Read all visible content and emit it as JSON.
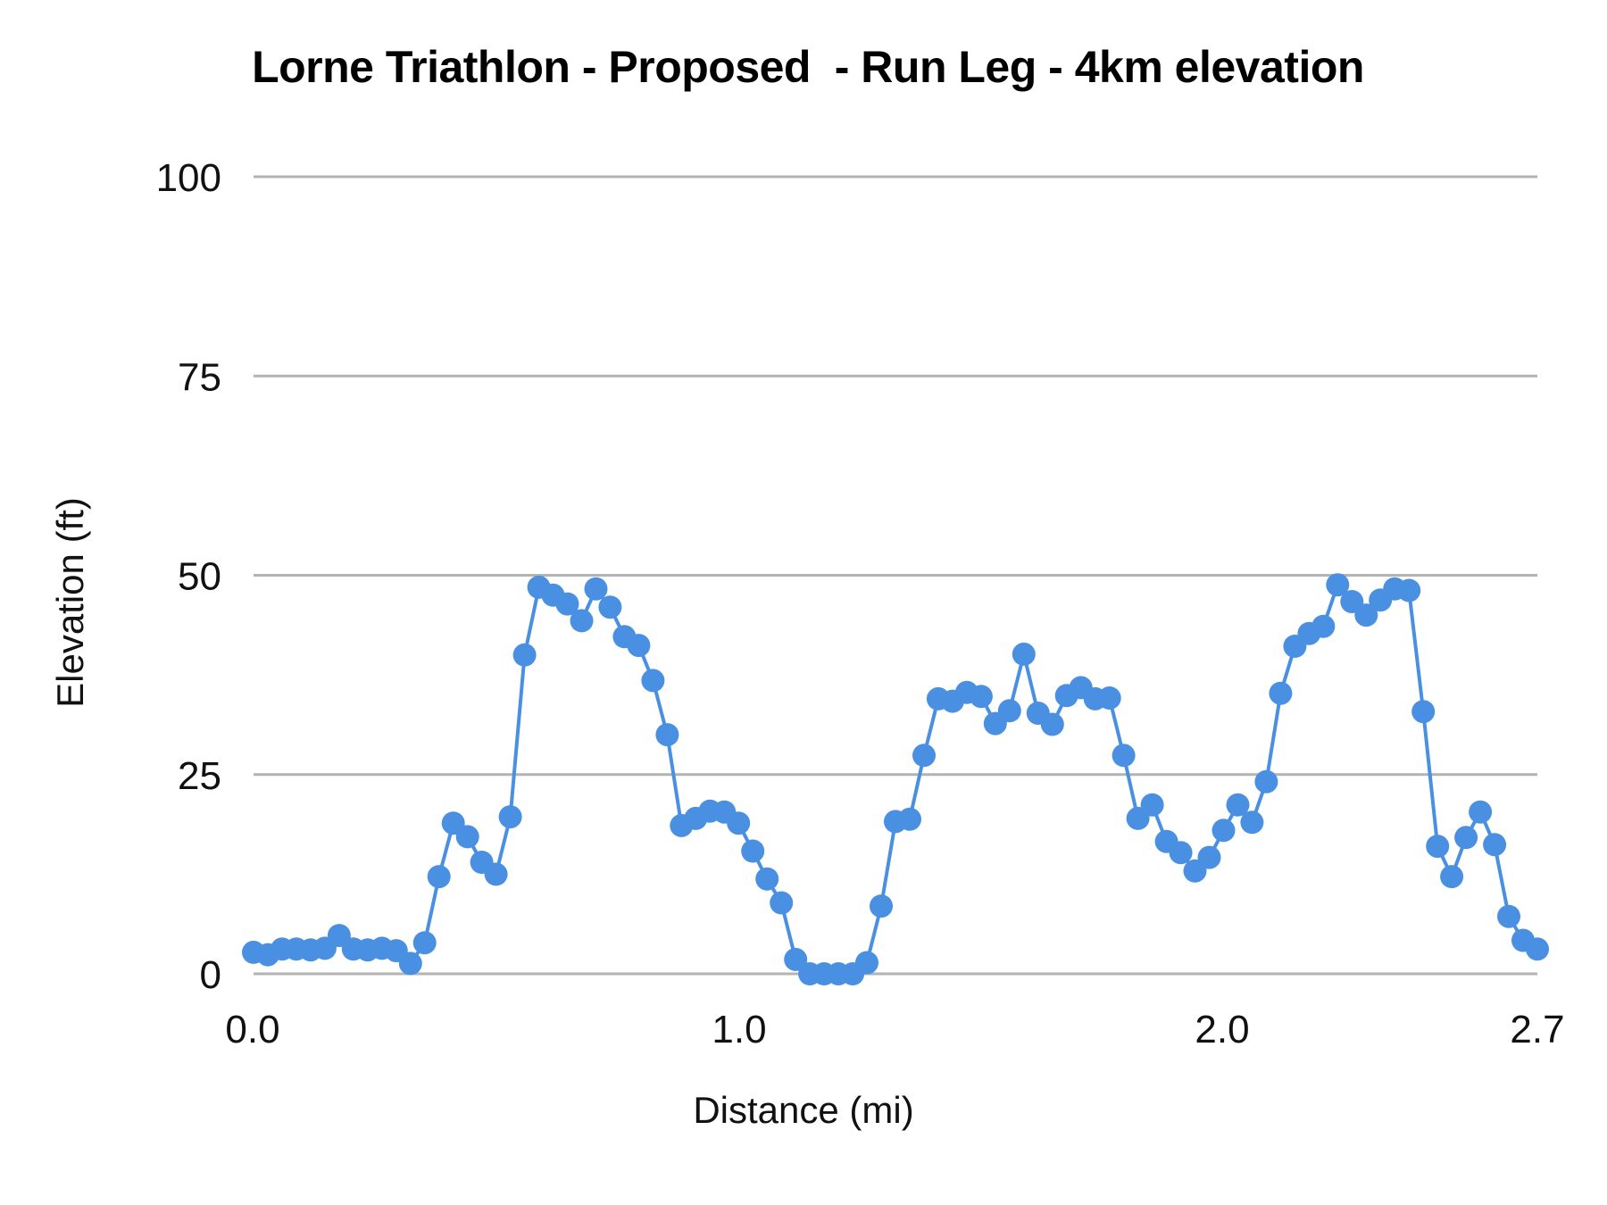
{
  "chart_data": {
    "type": "line",
    "title": "Lorne Triathlon - Proposed  - Run Leg - 4km elevation",
    "xlabel": "Distance (mi)",
    "ylabel": "Elevation (ft)",
    "xlim": [
      0.0,
      2.66
    ],
    "ylim": [
      0,
      100
    ],
    "x_ticks": [
      {
        "value": 0.0,
        "label": "0.0"
      },
      {
        "value": 1.0,
        "label": "1.0"
      },
      {
        "value": 2.0,
        "label": "2.0"
      },
      {
        "value": 2.66,
        "label": "2.7"
      }
    ],
    "y_ticks": [
      {
        "value": 0,
        "label": "0"
      },
      {
        "value": 25,
        "label": "25"
      },
      {
        "value": 50,
        "label": "50"
      },
      {
        "value": 75,
        "label": "75"
      },
      {
        "value": 100,
        "label": "100"
      }
    ],
    "grid": true,
    "legend": "none",
    "markers": true,
    "series": [
      {
        "name": "Elevation",
        "color": "#4a90e2",
        "x_step_mi": 0.02956,
        "values": [
          2.7,
          2.4,
          3.1,
          3.1,
          3.0,
          3.2,
          4.8,
          3.1,
          3.0,
          3.2,
          2.9,
          1.3,
          3.9,
          12.2,
          18.9,
          17.2,
          14.0,
          12.5,
          19.7,
          40.0,
          48.5,
          47.5,
          46.4,
          44.3,
          48.3,
          46.0,
          42.3,
          41.2,
          36.8,
          30.0,
          18.6,
          19.5,
          20.4,
          20.3,
          18.9,
          15.4,
          11.9,
          8.9,
          1.8,
          0.0,
          0.0,
          0.0,
          0.0,
          1.4,
          8.5,
          19.1,
          19.4,
          27.4,
          34.5,
          34.2,
          35.3,
          34.8,
          31.4,
          33.0,
          40.1,
          32.7,
          31.3,
          34.9,
          35.9,
          34.5,
          34.6,
          27.4,
          19.5,
          21.2,
          16.6,
          15.2,
          12.9,
          14.6,
          18.0,
          21.2,
          19.0,
          24.1,
          35.2,
          41.1,
          42.7,
          43.6,
          48.8,
          46.7,
          45.0,
          46.9,
          48.3,
          48.1,
          32.9,
          16.0,
          12.2,
          17.1,
          20.3,
          16.2,
          7.2,
          4.2,
          3.1
        ]
      }
    ]
  },
  "colors": {
    "line": "#4a90e2",
    "grid": "#b3b3b3",
    "text": "#111111"
  }
}
